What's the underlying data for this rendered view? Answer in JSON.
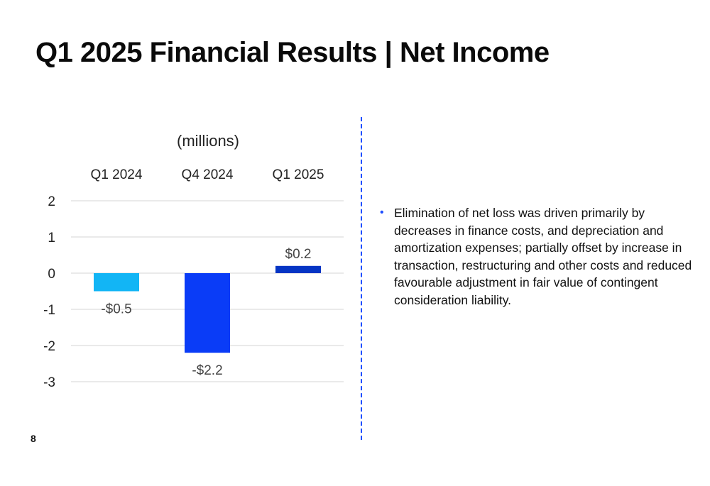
{
  "slide": {
    "title": "Q1 2025 Financial Results | Net Income",
    "page_number": "8"
  },
  "commentary": {
    "bullets": [
      "Elimination of net loss was driven primarily by decreases in finance costs, and depreciation and amortization expenses; partially offset by increase in transaction, restructuring and other costs and reduced favourable adjustment in fair value of contingent consideration liability."
    ]
  },
  "colors": {
    "divider": "#1f4fff",
    "bullet": "#1f4fff"
  },
  "chart_data": {
    "type": "bar",
    "unit_label": "(millions)",
    "categories": [
      "Q1 2024",
      "Q4 2024",
      "Q1 2025"
    ],
    "values": [
      -0.5,
      -2.2,
      0.2
    ],
    "data_labels": [
      "-$0.5",
      "-$2.2",
      "$0.2"
    ],
    "bar_colors": [
      "#12b5f5",
      "#0a3cf7",
      "#0535c4"
    ],
    "ylim": [
      -3,
      2
    ],
    "yticks": [
      2,
      1,
      0,
      -1,
      -2,
      -3
    ],
    "ytick_labels": [
      "2",
      "1",
      "0",
      "-1",
      "-2",
      "-3"
    ],
    "category_axis_position": "top",
    "grid": true,
    "grid_color": "#d6d6d6",
    "title": "",
    "xlabel": "",
    "ylabel": ""
  }
}
